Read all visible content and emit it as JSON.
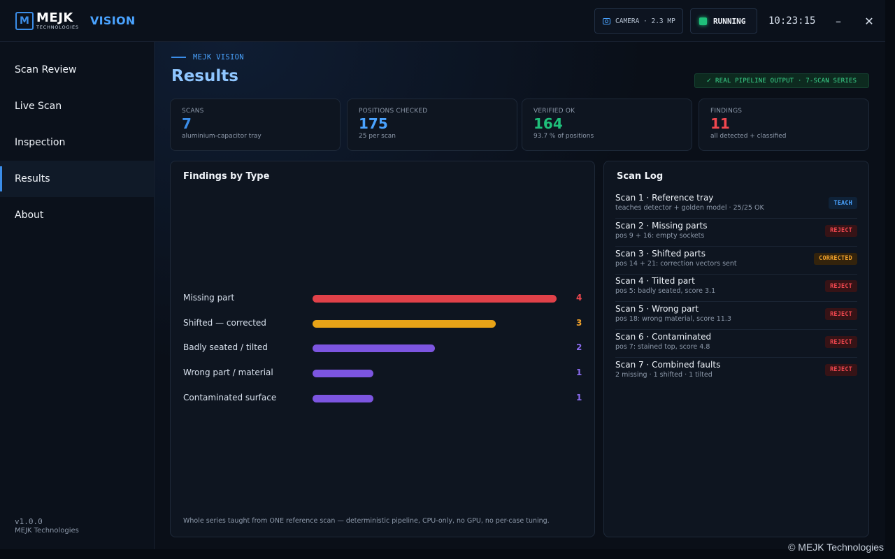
{
  "titlebar": {
    "logo_mark": "M",
    "logo_word": "MEJK",
    "logo_sub": "TECHNOLOGIES",
    "product": "VISION",
    "camera": "CAMERA · 2.3 MP",
    "status": "RUNNING",
    "clock": "10:23:15",
    "minimize": "–",
    "close": "✕"
  },
  "sidebar": {
    "items": [
      {
        "label": "Scan Review"
      },
      {
        "label": "Live Scan"
      },
      {
        "label": "Inspection"
      },
      {
        "label": "Results",
        "active": true
      },
      {
        "label": "About"
      }
    ],
    "version": "v1.0.0",
    "company": "MEJK Technologies"
  },
  "header": {
    "eyebrow": "MEJK VISION",
    "title": "Results",
    "pipeline_badge": "REAL PIPELINE OUTPUT · 7-SCAN SERIES"
  },
  "kpis": [
    {
      "label": "SCANS",
      "value": "7",
      "sub": "aluminium-capacitor tray",
      "color": "#3b8de8"
    },
    {
      "label": "POSITIONS CHECKED",
      "value": "175",
      "sub": "25 per scan",
      "color": "#4aa3ff"
    },
    {
      "label": "VERIFIED OK",
      "value": "164",
      "sub": "93.7 % of positions",
      "color": "#1fbf7a"
    },
    {
      "label": "FINDINGS",
      "value": "11",
      "sub": "all detected + classified",
      "color": "#f0474f"
    }
  ],
  "findings_panel": {
    "title": "Findings by Type",
    "footnote": "Whole series taught from ONE reference scan — deterministic pipeline, CPU-only, no GPU, no per-case tuning."
  },
  "chart_data": {
    "type": "bar",
    "orientation": "horizontal",
    "title": "Findings by Type",
    "categories": [
      "Missing part",
      "Shifted — corrected",
      "Badly seated / tilted",
      "Wrong part / material",
      "Contaminated surface"
    ],
    "values": [
      4,
      3,
      2,
      1,
      1
    ],
    "colors": [
      "#e04149",
      "#e8a317",
      "#7c55e0",
      "#7c55e0",
      "#7c55e0"
    ],
    "value_colors": [
      "#f0474f",
      "#f0a12a",
      "#8b6cf0",
      "#8b6cf0",
      "#8b6cf0"
    ],
    "xlim": [
      0,
      4
    ],
    "grid": false
  },
  "scan_log": {
    "title": "Scan Log",
    "items": [
      {
        "title": "Scan 1 · Reference tray",
        "desc": "teaches detector + golden model · 25/25 OK",
        "tag": "TEACH",
        "kind": "teach"
      },
      {
        "title": "Scan 2 · Missing parts",
        "desc": "pos 9 + 16: empty sockets",
        "tag": "REJECT",
        "kind": "reject"
      },
      {
        "title": "Scan 3 · Shifted parts",
        "desc": "pos 14 + 21: correction vectors sent",
        "tag": "CORRECTED",
        "kind": "corrected"
      },
      {
        "title": "Scan 4 · Tilted part",
        "desc": "pos 5: badly seated, score 3.1",
        "tag": "REJECT",
        "kind": "reject"
      },
      {
        "title": "Scan 5 · Wrong part",
        "desc": "pos 18: wrong material, score 11.3",
        "tag": "REJECT",
        "kind": "reject"
      },
      {
        "title": "Scan 6 · Contaminated",
        "desc": "pos 7: stained top, score 4.8",
        "tag": "REJECT",
        "kind": "reject"
      },
      {
        "title": "Scan 7 · Combined faults",
        "desc": "2 missing · 1 shifted · 1 tilted",
        "tag": "REJECT",
        "kind": "reject"
      }
    ]
  },
  "copyright": "© MEJK Technologies"
}
